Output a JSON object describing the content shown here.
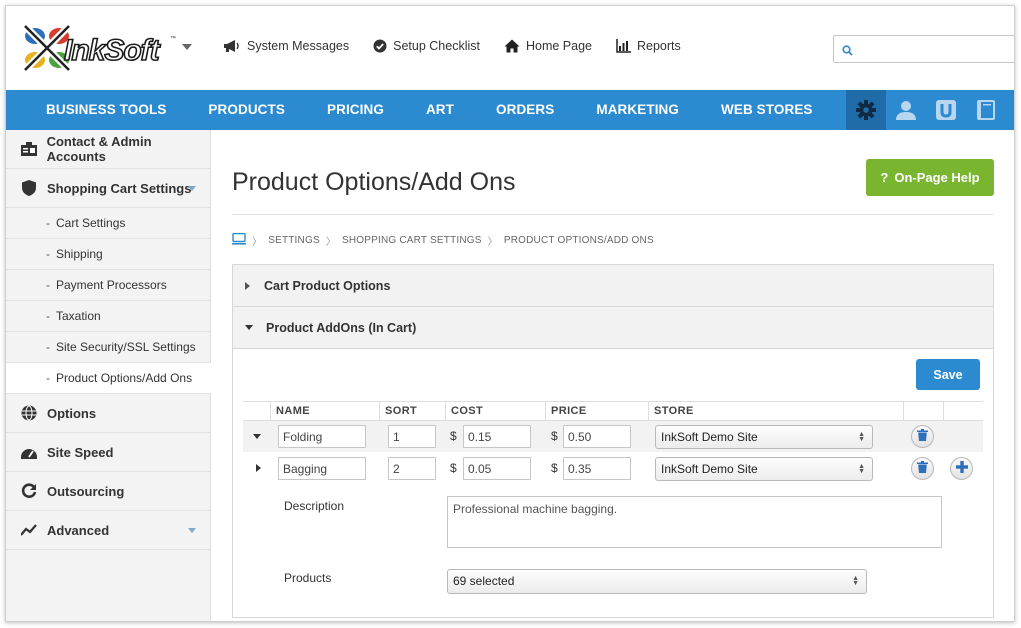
{
  "topbar": {
    "logo_text": "InkSoft",
    "links": [
      {
        "label": "System Messages",
        "icon": "megaphone-icon"
      },
      {
        "label": "Setup Checklist",
        "icon": "check-circle-icon"
      },
      {
        "label": "Home Page",
        "icon": "home-icon"
      },
      {
        "label": "Reports",
        "icon": "bar-chart-icon"
      }
    ],
    "search_placeholder": ""
  },
  "nav": {
    "items": [
      "BUSINESS TOOLS",
      "PRODUCTS",
      "PRICING",
      "ART",
      "ORDERS",
      "MARKETING",
      "WEB STORES"
    ],
    "icons": [
      "gear-icon",
      "user-icon",
      "u-badge-icon",
      "book-icon"
    ]
  },
  "sidebar": {
    "items": [
      {
        "label": "Contact & Admin Accounts",
        "icon": "contacts-icon"
      },
      {
        "label": "Shopping Cart Settings",
        "icon": "shield-icon"
      }
    ],
    "subitems": [
      "Cart Settings",
      "Shipping",
      "Payment Processors",
      "Taxation",
      "Site Security/SSL Settings",
      "Product Options/Add Ons"
    ],
    "items_after": [
      {
        "label": "Options",
        "icon": "globe-icon"
      },
      {
        "label": "Site Speed",
        "icon": "dashboard-icon"
      },
      {
        "label": "Outsourcing",
        "icon": "refresh-icon"
      },
      {
        "label": "Advanced",
        "icon": "trend-icon"
      }
    ]
  },
  "main": {
    "title": "Product Options/Add Ons",
    "help_label": "On-Page Help",
    "help_icon": "?",
    "breadcrumb": [
      "SETTINGS",
      "SHOPPING CART SETTINGS",
      "PRODUCT OPTIONS/ADD ONS"
    ],
    "sections": [
      "Cart Product Options",
      "Product AddOns (In Cart)"
    ],
    "save_label": "Save",
    "columns": [
      "NAME",
      "SORT",
      "COST",
      "PRICE",
      "STORE"
    ],
    "currency": "$",
    "rows": [
      {
        "name": "Folding",
        "sort": "1",
        "cost": "0.15",
        "price": "0.50",
        "store": "InkSoft Demo Site"
      },
      {
        "name": "Bagging",
        "sort": "2",
        "cost": "0.05",
        "price": "0.35",
        "store": "InkSoft Demo Site"
      }
    ],
    "description_label": "Description",
    "description_value": "Professional machine bagging.",
    "products_label": "Products",
    "products_value": "69 selected"
  },
  "colors": {
    "nav_blue": "#2c8ad1",
    "help_green": "#7ab52f"
  }
}
